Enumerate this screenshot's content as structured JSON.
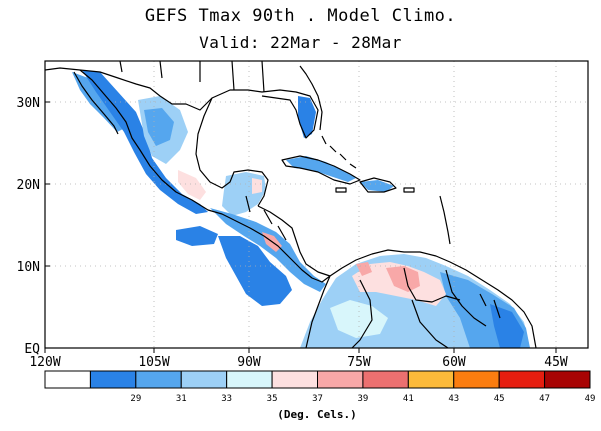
{
  "title": {
    "line1": "GEFS Tmax 90th . Model Climo.",
    "line2": "Valid: 22Mar - 28Mar"
  },
  "map": {
    "lat_ticks": [
      "30N",
      "20N",
      "10N",
      "EQ"
    ],
    "lon_ticks": [
      "120W",
      "105W",
      "90W",
      "75W",
      "60W",
      "45W"
    ],
    "region": "Mexico, Central America, Caribbean, northern South America"
  },
  "legend": {
    "unit_label": "(Deg. Cels.)",
    "bins": [
      {
        "color": "#ffffff",
        "label": ""
      },
      {
        "color": "#2a82e6",
        "label": "29"
      },
      {
        "color": "#55a6ee",
        "label": "31"
      },
      {
        "color": "#9dd0f6",
        "label": "33"
      },
      {
        "color": "#d8f6fb",
        "label": "35"
      },
      {
        "color": "#fde0e0",
        "label": "37"
      },
      {
        "color": "#f8a8a8",
        "label": "39"
      },
      {
        "color": "#ec7070",
        "label": "41"
      },
      {
        "color": "#fcba3a",
        "label": "43"
      },
      {
        "color": "#fb7d10",
        "label": "45"
      },
      {
        "color": "#e61e10",
        "label": "47"
      },
      {
        "color": "#a80404",
        "label": "49"
      }
    ]
  }
}
